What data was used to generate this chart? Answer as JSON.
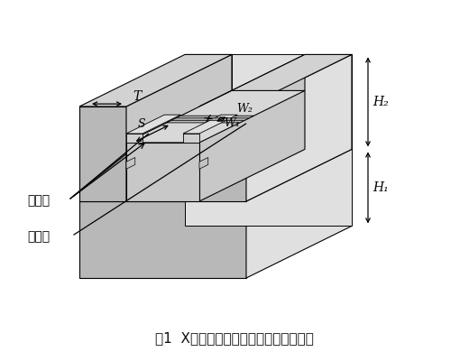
{
  "title": "图1  X波段功率器件外壳端口的仿真模型",
  "title_fontsize": 11,
  "bg_color": "#ffffff",
  "c_top": "#d2d2d2",
  "c_front": "#b8b8b8",
  "c_right": "#e0e0e0",
  "c_top_light": "#e8e8e8",
  "c_inner_top": "#d8d8d8",
  "c_inner_front": "#c8c8c8",
  "c_strip": "#c0c0c0",
  "c_strip_groove": "#a8a8a8",
  "line_color": "#000000",
  "labels": {
    "T": "T",
    "W1": "W₁",
    "W2": "W₂",
    "H1": "H₁",
    "H2": "H₂",
    "S": "S",
    "ground": "参考地",
    "signal": "信号线"
  }
}
